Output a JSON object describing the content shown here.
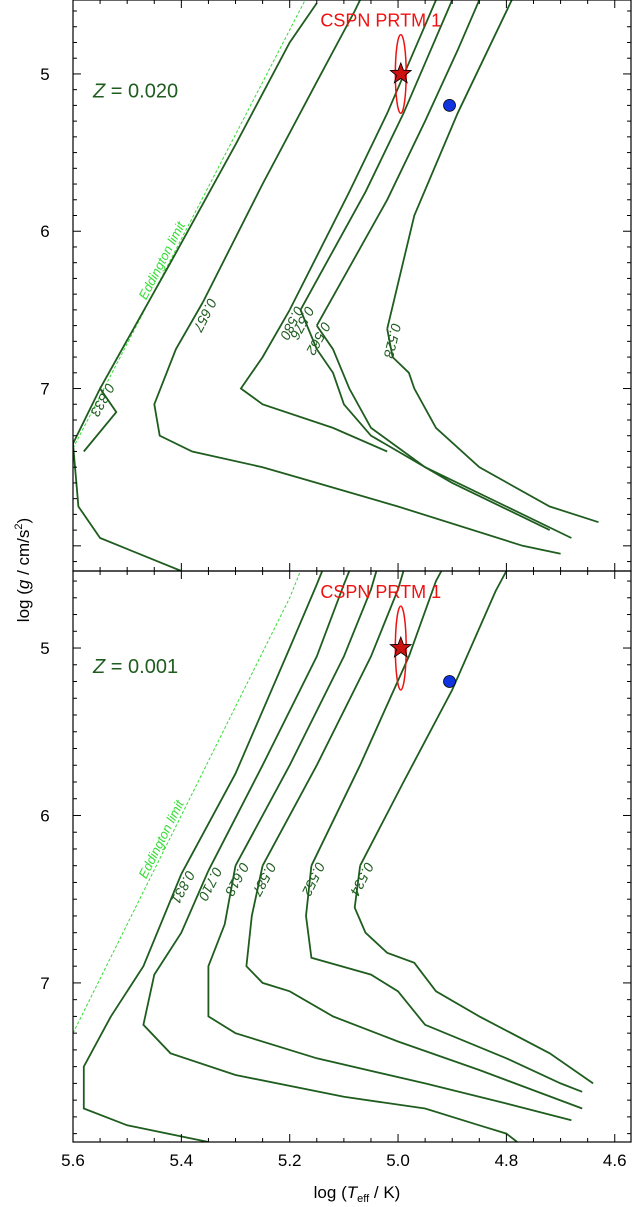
{
  "colors": {
    "track": "#1f5d1f",
    "eddington": "#33dd33",
    "object": "#ee1111",
    "object_fill": "#cc1111",
    "comparison": "#1133dd",
    "axes": "#000000"
  },
  "axes": {
    "xlabel_prefix": "log (",
    "xlabel_var": "T",
    "xlabel_sub": "eff",
    "xlabel_suffix": " / K)",
    "ylabel_prefix": "log (",
    "ylabel_var": "g",
    "ylabel_unit": " / cm/s",
    "ylabel_sup": "2",
    "ylabel_suffix": ")",
    "x_tick_labels": [
      "5.6",
      "5.4",
      "5.2",
      "5.0",
      "4.8",
      "4.6"
    ],
    "y_tick_labels": [
      "5",
      "6",
      "7"
    ]
  },
  "chart_data": [
    {
      "type": "line",
      "xlim": [
        5.6,
        4.57
      ],
      "ylim": [
        8.16,
        4.53
      ],
      "x_inverted": true,
      "y_inverted": true,
      "x_ticks": [
        5.6,
        5.4,
        5.2,
        5.0,
        4.8,
        4.6
      ],
      "y_ticks": [
        5,
        6,
        7
      ],
      "y_minor_step": 0.1,
      "x_minor_step": 0.05,
      "z_prefix": "Z",
      "z_value": "= 0.020",
      "object_label": "CSPN PRTM 1",
      "object": {
        "x": 4.995,
        "y": 5.0,
        "x_err": 0.01,
        "y_err": 0.25
      },
      "comparison_point": {
        "x": 4.905,
        "y": 5.2
      },
      "eddington": {
        "label": "Eddington limit",
        "points": [
          [
            5.6,
            7.38
          ],
          [
            5.4,
            6.05
          ],
          [
            5.2,
            4.72
          ],
          [
            5.17,
            4.52
          ]
        ]
      },
      "series": [
        {
          "name": "0.833",
          "points": [
            [
              5.55,
              7.0
            ],
            [
              5.42,
              6.2
            ],
            [
              5.3,
              5.45
            ],
            [
              5.2,
              4.8
            ],
            [
              5.15,
              4.55
            ]
          ]
        },
        {
          "name": "0.657",
          "points": [
            [
              5.36,
              6.45
            ],
            [
              5.25,
              5.7
            ],
            [
              5.15,
              5.05
            ],
            [
              5.08,
              4.6
            ],
            [
              5.07,
              4.53
            ]
          ]
        },
        {
          "name": "0.580",
          "points": [
            [
              5.2,
              6.5
            ],
            [
              5.09,
              5.75
            ],
            [
              5.02,
              5.25
            ],
            [
              4.97,
              4.85
            ],
            [
              4.93,
              4.53
            ]
          ]
        },
        {
          "name": "0.576",
          "points": [
            [
              5.18,
              6.5
            ],
            [
              5.06,
              5.75
            ],
            [
              4.99,
              5.25
            ],
            [
              4.94,
              4.85
            ],
            [
              4.9,
              4.53
            ]
          ]
        },
        {
          "name": "0.562",
          "points": [
            [
              5.15,
              6.6
            ],
            [
              5.02,
              5.8
            ],
            [
              4.95,
              5.3
            ],
            [
              4.89,
              4.85
            ],
            [
              4.85,
              4.53
            ]
          ]
        },
        {
          "name": "0.528",
          "points": [
            [
              5.02,
              6.62
            ],
            [
              4.97,
              5.9
            ],
            [
              4.89,
              5.25
            ],
            [
              4.79,
              4.53
            ]
          ]
        }
      ],
      "lower_tracks": [
        [
          [
            5.58,
            7.4
          ],
          [
            5.52,
            7.15
          ],
          [
            5.55,
            7.0
          ],
          [
            5.6,
            7.35
          ],
          [
            5.59,
            7.75
          ],
          [
            5.55,
            7.95
          ],
          [
            5.4,
            8.16
          ]
        ],
        [
          [
            5.36,
            6.45
          ],
          [
            5.41,
            6.75
          ],
          [
            5.45,
            7.1
          ],
          [
            5.44,
            7.3
          ],
          [
            5.38,
            7.4
          ],
          [
            5.25,
            7.5
          ],
          [
            5.17,
            7.58
          ],
          [
            5.0,
            7.75
          ],
          [
            4.77,
            8.0
          ],
          [
            4.7,
            8.05
          ]
        ],
        [
          [
            5.2,
            6.5
          ],
          [
            5.25,
            6.8
          ],
          [
            5.29,
            7.0
          ],
          [
            5.25,
            7.1
          ],
          [
            5.12,
            7.25
          ],
          [
            5.02,
            7.4
          ]
        ],
        [
          [
            5.18,
            6.5
          ],
          [
            5.15,
            6.75
          ],
          [
            5.12,
            6.9
          ],
          [
            5.1,
            7.1
          ],
          [
            5.05,
            7.3
          ],
          [
            4.9,
            7.6
          ],
          [
            4.72,
            7.9
          ]
        ],
        [
          [
            5.15,
            6.6
          ],
          [
            5.12,
            6.75
          ],
          [
            5.09,
            7.0
          ],
          [
            5.05,
            7.25
          ],
          [
            4.95,
            7.5
          ],
          [
            4.8,
            7.75
          ],
          [
            4.68,
            7.95
          ]
        ],
        [
          [
            5.02,
            6.62
          ],
          [
            5.01,
            6.8
          ],
          [
            4.98,
            6.9
          ],
          [
            4.97,
            7.0
          ],
          [
            4.93,
            7.25
          ],
          [
            4.85,
            7.5
          ],
          [
            4.72,
            7.75
          ],
          [
            4.63,
            7.85
          ]
        ]
      ]
    },
    {
      "type": "line",
      "xlim": [
        5.6,
        4.57
      ],
      "ylim": [
        7.95,
        4.54
      ],
      "x_inverted": true,
      "y_inverted": true,
      "x_ticks": [
        5.6,
        5.4,
        5.2,
        5.0,
        4.8,
        4.6
      ],
      "y_ticks": [
        5,
        6,
        7
      ],
      "y_minor_step": 0.1,
      "x_minor_step": 0.05,
      "z_prefix": "Z",
      "z_value": "= 0.001",
      "object_label": "CSPN PRTM 1",
      "object": {
        "x": 4.995,
        "y": 5.0,
        "x_err": 0.01,
        "y_err": 0.25
      },
      "comparison_point": {
        "x": 4.905,
        "y": 5.2
      },
      "eddington": {
        "label": "Eddington limit",
        "points": [
          [
            5.6,
            7.3
          ],
          [
            5.4,
            6.0
          ],
          [
            5.2,
            4.7
          ],
          [
            5.18,
            4.54
          ]
        ]
      },
      "series": [
        {
          "name": "0.831",
          "points": [
            [
              5.4,
              6.35
            ],
            [
              5.3,
              5.75
            ],
            [
              5.2,
              5.0
            ],
            [
              5.15,
              4.62
            ],
            [
              5.14,
              4.54
            ]
          ]
        },
        {
          "name": "0.710",
          "points": [
            [
              5.35,
              6.33
            ],
            [
              5.25,
              5.7
            ],
            [
              5.15,
              5.05
            ],
            [
              5.1,
              4.62
            ],
            [
              5.09,
              4.54
            ]
          ]
        },
        {
          "name": "0.618",
          "points": [
            [
              5.3,
              6.3
            ],
            [
              5.2,
              5.7
            ],
            [
              5.1,
              5.05
            ],
            [
              5.05,
              4.65
            ],
            [
              5.04,
              4.54
            ]
          ]
        },
        {
          "name": "0.587",
          "points": [
            [
              5.25,
              6.3
            ],
            [
              5.15,
              5.7
            ],
            [
              5.05,
              5.05
            ],
            [
              5.0,
              4.65
            ],
            [
              4.99,
              4.54
            ]
          ]
        },
        {
          "name": "0.552",
          "points": [
            [
              5.16,
              6.3
            ],
            [
              5.07,
              5.7
            ],
            [
              4.98,
              5.05
            ],
            [
              4.93,
              4.6
            ],
            [
              4.92,
              4.54
            ]
          ]
        },
        {
          "name": "0.534",
          "points": [
            [
              5.07,
              6.3
            ],
            [
              4.99,
              5.8
            ],
            [
              4.9,
              5.25
            ],
            [
              4.82,
              4.66
            ],
            [
              4.8,
              4.54
            ]
          ]
        }
      ],
      "lower_tracks": [
        [
          [
            5.4,
            6.35
          ],
          [
            5.47,
            6.9
          ],
          [
            5.53,
            7.2
          ],
          [
            5.58,
            7.5
          ],
          [
            5.58,
            7.75
          ],
          [
            5.5,
            7.85
          ],
          [
            5.35,
            7.95
          ]
        ],
        [
          [
            5.35,
            6.33
          ],
          [
            5.4,
            6.7
          ],
          [
            5.45,
            6.95
          ],
          [
            5.47,
            7.25
          ],
          [
            5.42,
            7.42
          ],
          [
            5.3,
            7.55
          ],
          [
            5.1,
            7.68
          ],
          [
            4.95,
            7.75
          ],
          [
            4.85,
            7.85
          ],
          [
            4.8,
            7.9
          ],
          [
            4.78,
            7.95
          ]
        ],
        [
          [
            5.3,
            6.3
          ],
          [
            5.32,
            6.65
          ],
          [
            5.35,
            6.9
          ],
          [
            5.35,
            7.2
          ],
          [
            5.3,
            7.3
          ],
          [
            5.15,
            7.45
          ],
          [
            4.95,
            7.6
          ],
          [
            4.8,
            7.72
          ],
          [
            4.68,
            7.82
          ]
        ],
        [
          [
            5.25,
            6.3
          ],
          [
            5.27,
            6.6
          ],
          [
            5.28,
            6.9
          ],
          [
            5.25,
            7.0
          ],
          [
            5.2,
            7.05
          ],
          [
            5.12,
            7.2
          ],
          [
            5.0,
            7.35
          ],
          [
            4.85,
            7.52
          ],
          [
            4.66,
            7.75
          ]
        ],
        [
          [
            5.16,
            6.3
          ],
          [
            5.17,
            6.6
          ],
          [
            5.16,
            6.85
          ],
          [
            5.05,
            6.95
          ],
          [
            5.0,
            7.05
          ],
          [
            4.95,
            7.25
          ],
          [
            4.8,
            7.45
          ],
          [
            4.7,
            7.6
          ],
          [
            4.66,
            7.65
          ]
        ],
        [
          [
            5.07,
            6.3
          ],
          [
            5.08,
            6.55
          ],
          [
            5.06,
            6.7
          ],
          [
            5.02,
            6.82
          ],
          [
            4.97,
            6.88
          ],
          [
            4.93,
            7.05
          ],
          [
            4.85,
            7.2
          ],
          [
            4.72,
            7.42
          ],
          [
            4.64,
            7.6
          ]
        ]
      ]
    }
  ]
}
